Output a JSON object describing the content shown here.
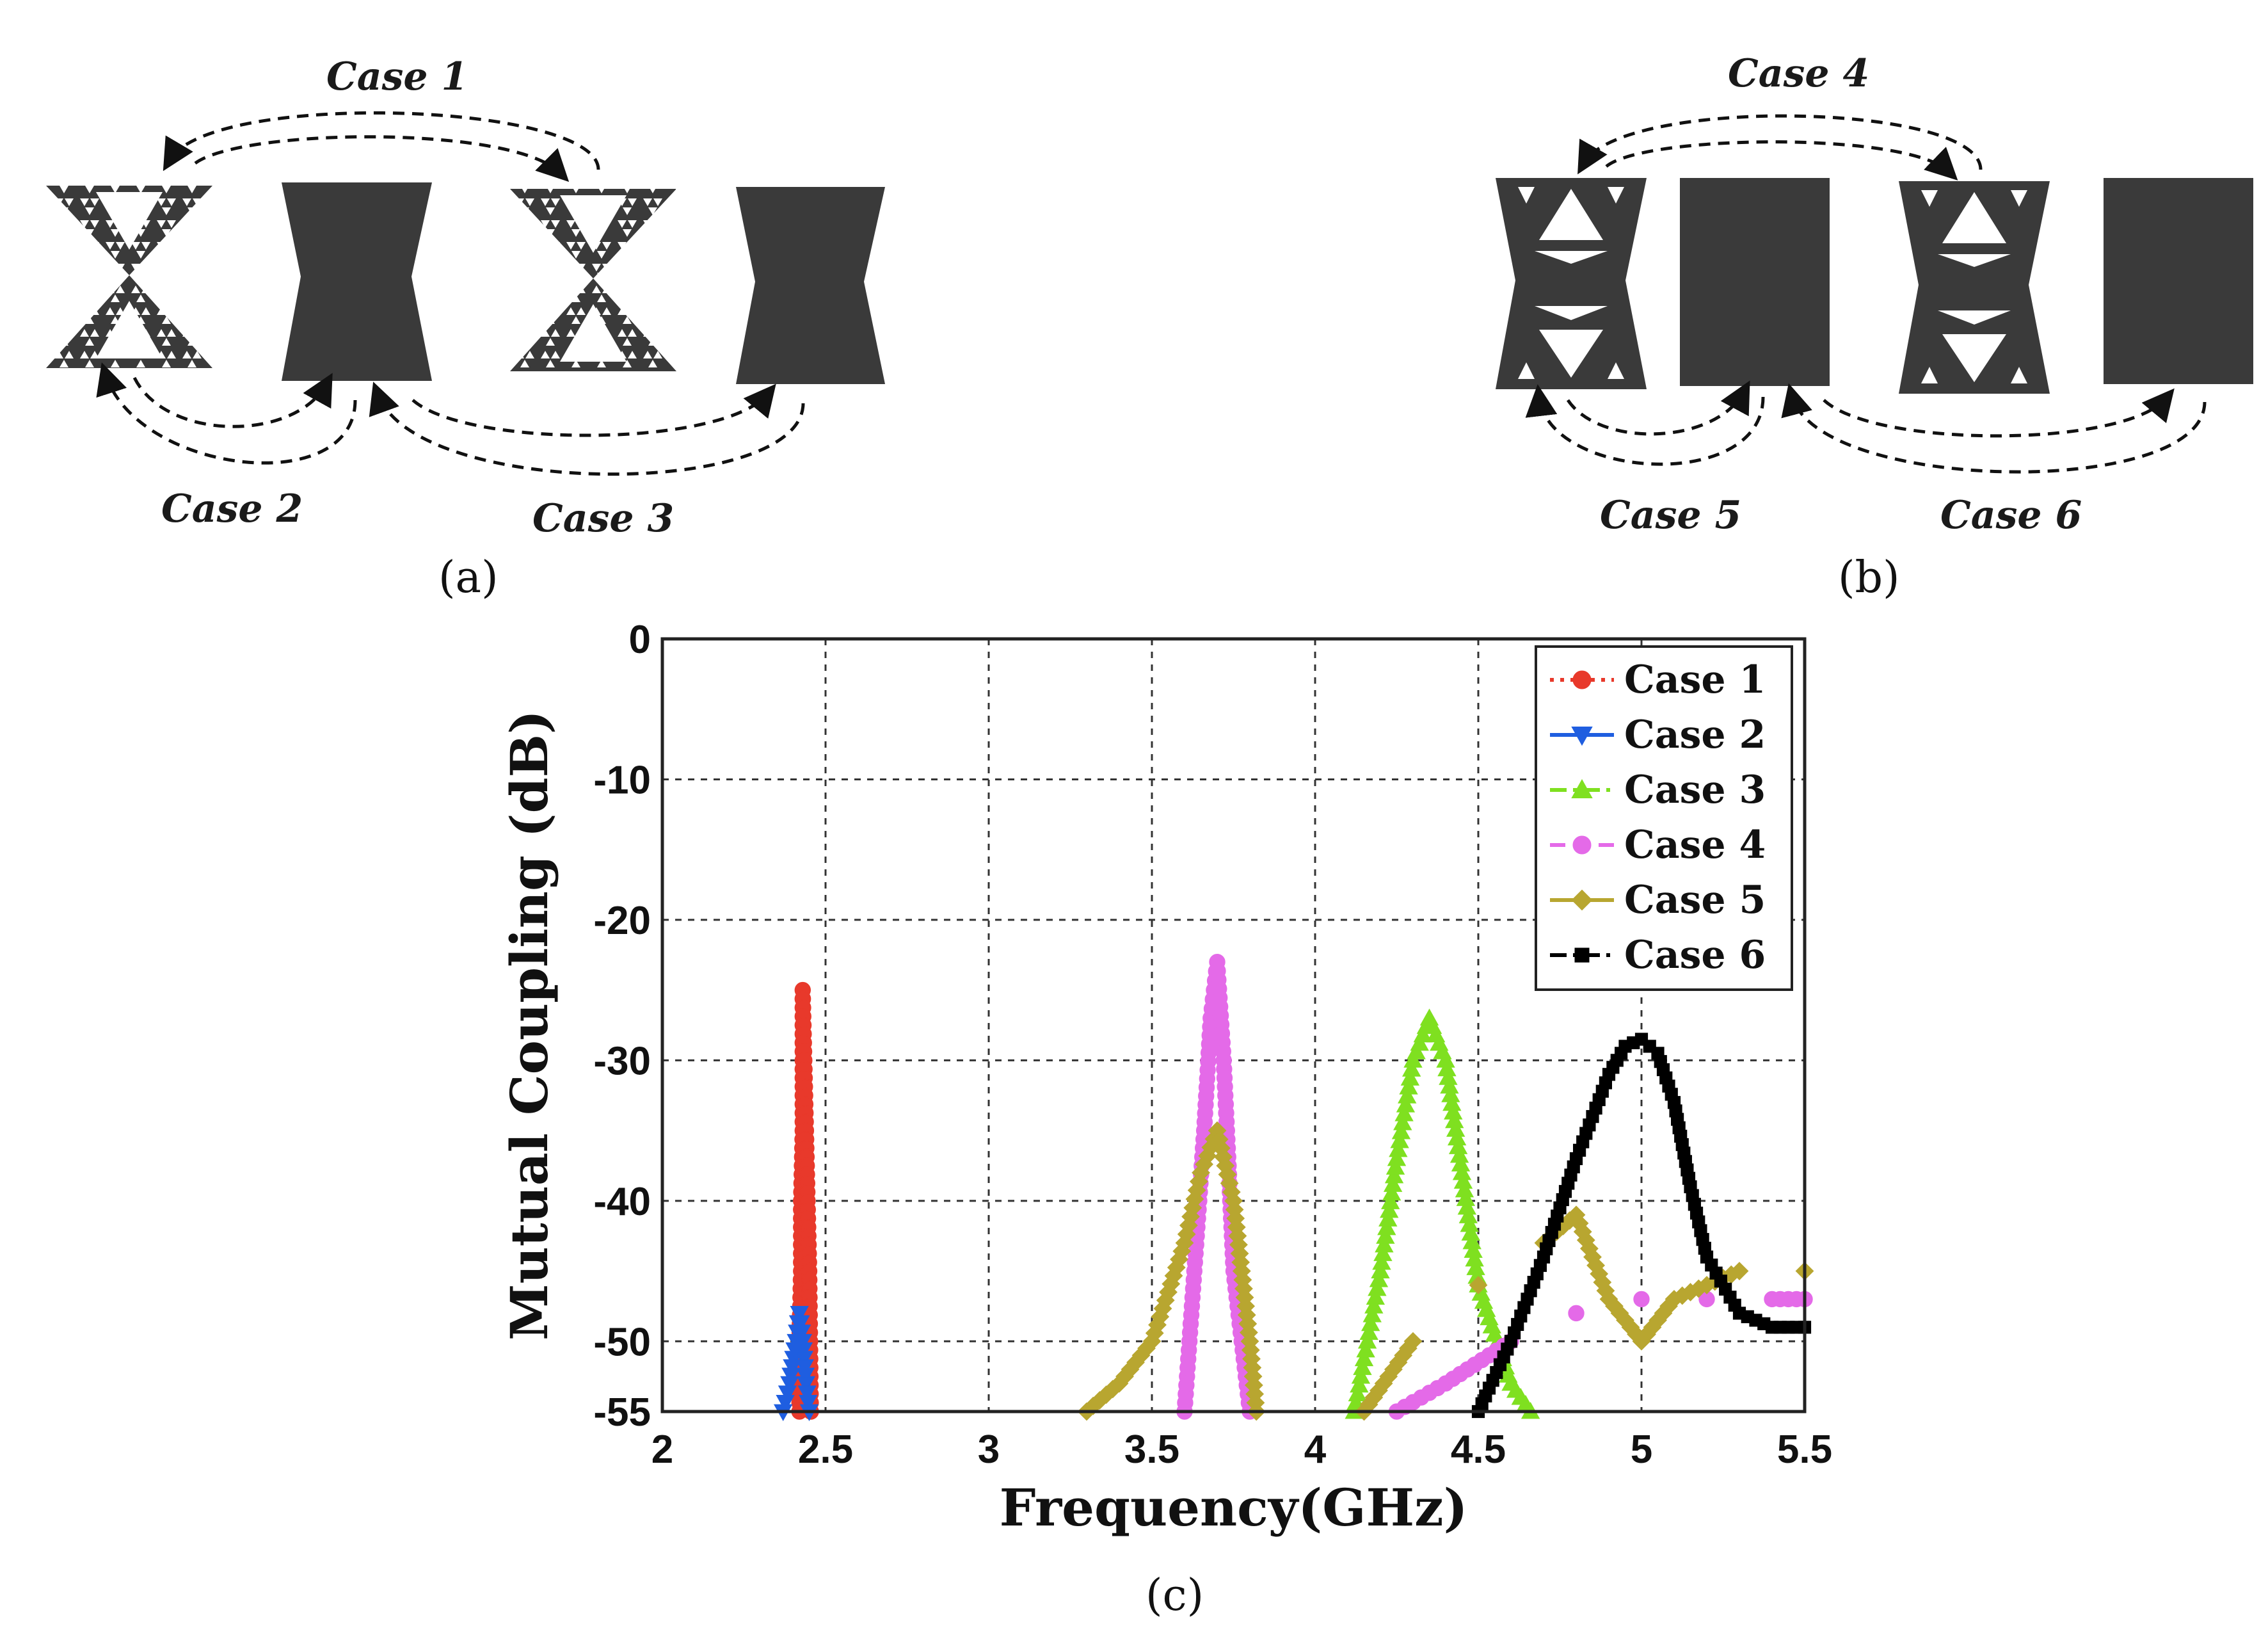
{
  "panel_a": {
    "label": "(a)",
    "cases": [
      "Case 1",
      "Case 2",
      "Case 3"
    ]
  },
  "panel_b": {
    "label": "(b)",
    "cases": [
      "Case 4",
      "Case 5",
      "Case 6"
    ]
  },
  "panel_c_label": "(c)",
  "chart_data": {
    "type": "line",
    "title": "",
    "xlabel": "Frequency(GHz)",
    "ylabel": "Mutual Coupling (dB)",
    "xlim": [
      2,
      5.5
    ],
    "ylim": [
      -55,
      0
    ],
    "xticks": [
      "2",
      "2.5",
      "3",
      "3.5",
      "4",
      "4.5",
      "5",
      "5.5"
    ],
    "yticks": [
      "0",
      "-10",
      "-20",
      "-30",
      "-40",
      "-50",
      "-55"
    ],
    "grid": true,
    "legend_position": "top-right",
    "series": [
      {
        "name": "Case 1",
        "color": "#e8392b",
        "marker": "circle",
        "dash": "dotted",
        "x": [
          2.42,
          2.42,
          2.425,
          2.425,
          2.43,
          2.43,
          2.43,
          2.435,
          2.44,
          2.445,
          2.45,
          2.455
        ],
        "y": [
          -55,
          -50,
          -45,
          -40,
          -35,
          -30,
          -25,
          -30,
          -35,
          -40,
          -45,
          -55
        ]
      },
      {
        "name": "Case 2",
        "color": "#1f5ee0",
        "marker": "triangle-down",
        "dash": "solid",
        "x": [
          2.37,
          2.39,
          2.41,
          2.42,
          2.43,
          2.44,
          2.45
        ],
        "y": [
          -55,
          -53,
          -50,
          -48,
          -50,
          -53,
          -55
        ]
      },
      {
        "name": "Case 3",
        "color": "#7fe020",
        "marker": "triangle-up",
        "dash": "dashdot",
        "x": [
          4.12,
          4.2,
          4.25,
          4.3,
          4.35,
          4.4,
          4.45,
          4.5,
          4.6,
          4.66
        ],
        "y": [
          -55,
          -45,
          -37,
          -30,
          -27,
          -30,
          -38,
          -46,
          -53,
          -55
        ]
      },
      {
        "name": "Case 4",
        "color": "#e46ae8",
        "marker": "circle",
        "dash": "dashed",
        "x": [
          3.6,
          3.63,
          3.66,
          3.68,
          3.7,
          3.72,
          3.75,
          3.8,
          4.25,
          4.4,
          4.6,
          4.8,
          5.0,
          5.2,
          5.4,
          5.5
        ],
        "y": [
          -55,
          -45,
          -35,
          -27,
          -23,
          -30,
          -45,
          -55,
          -55,
          -53,
          -50,
          -48,
          -47,
          -47,
          -47,
          -47
        ]
      },
      {
        "name": "Case 5",
        "color": "#b8a630",
        "marker": "diamond",
        "dash": "solid",
        "x": [
          3.3,
          3.4,
          3.5,
          3.6,
          3.65,
          3.7,
          3.75,
          3.8,
          3.82,
          4.15,
          4.3,
          4.5,
          4.7,
          4.8,
          4.9,
          5.0,
          5.1,
          5.2,
          5.3,
          5.5
        ],
        "y": [
          -55,
          -53,
          -50,
          -43,
          -38,
          -35,
          -40,
          -50,
          -55,
          -55,
          -50,
          -46,
          -43,
          -41,
          -47,
          -50,
          -47,
          -46,
          -45,
          -45
        ]
      },
      {
        "name": "Case 6",
        "color": "#000000",
        "marker": "square",
        "dash": "dashdot",
        "x": [
          4.5,
          4.6,
          4.7,
          4.8,
          4.9,
          4.95,
          5.0,
          5.05,
          5.1,
          5.15,
          5.2,
          5.3,
          5.4,
          5.5
        ],
        "y": [
          -55,
          -50,
          -44,
          -37,
          -31,
          -29,
          -28.5,
          -29.5,
          -33,
          -39,
          -44,
          -48,
          -49,
          -49
        ]
      }
    ]
  }
}
